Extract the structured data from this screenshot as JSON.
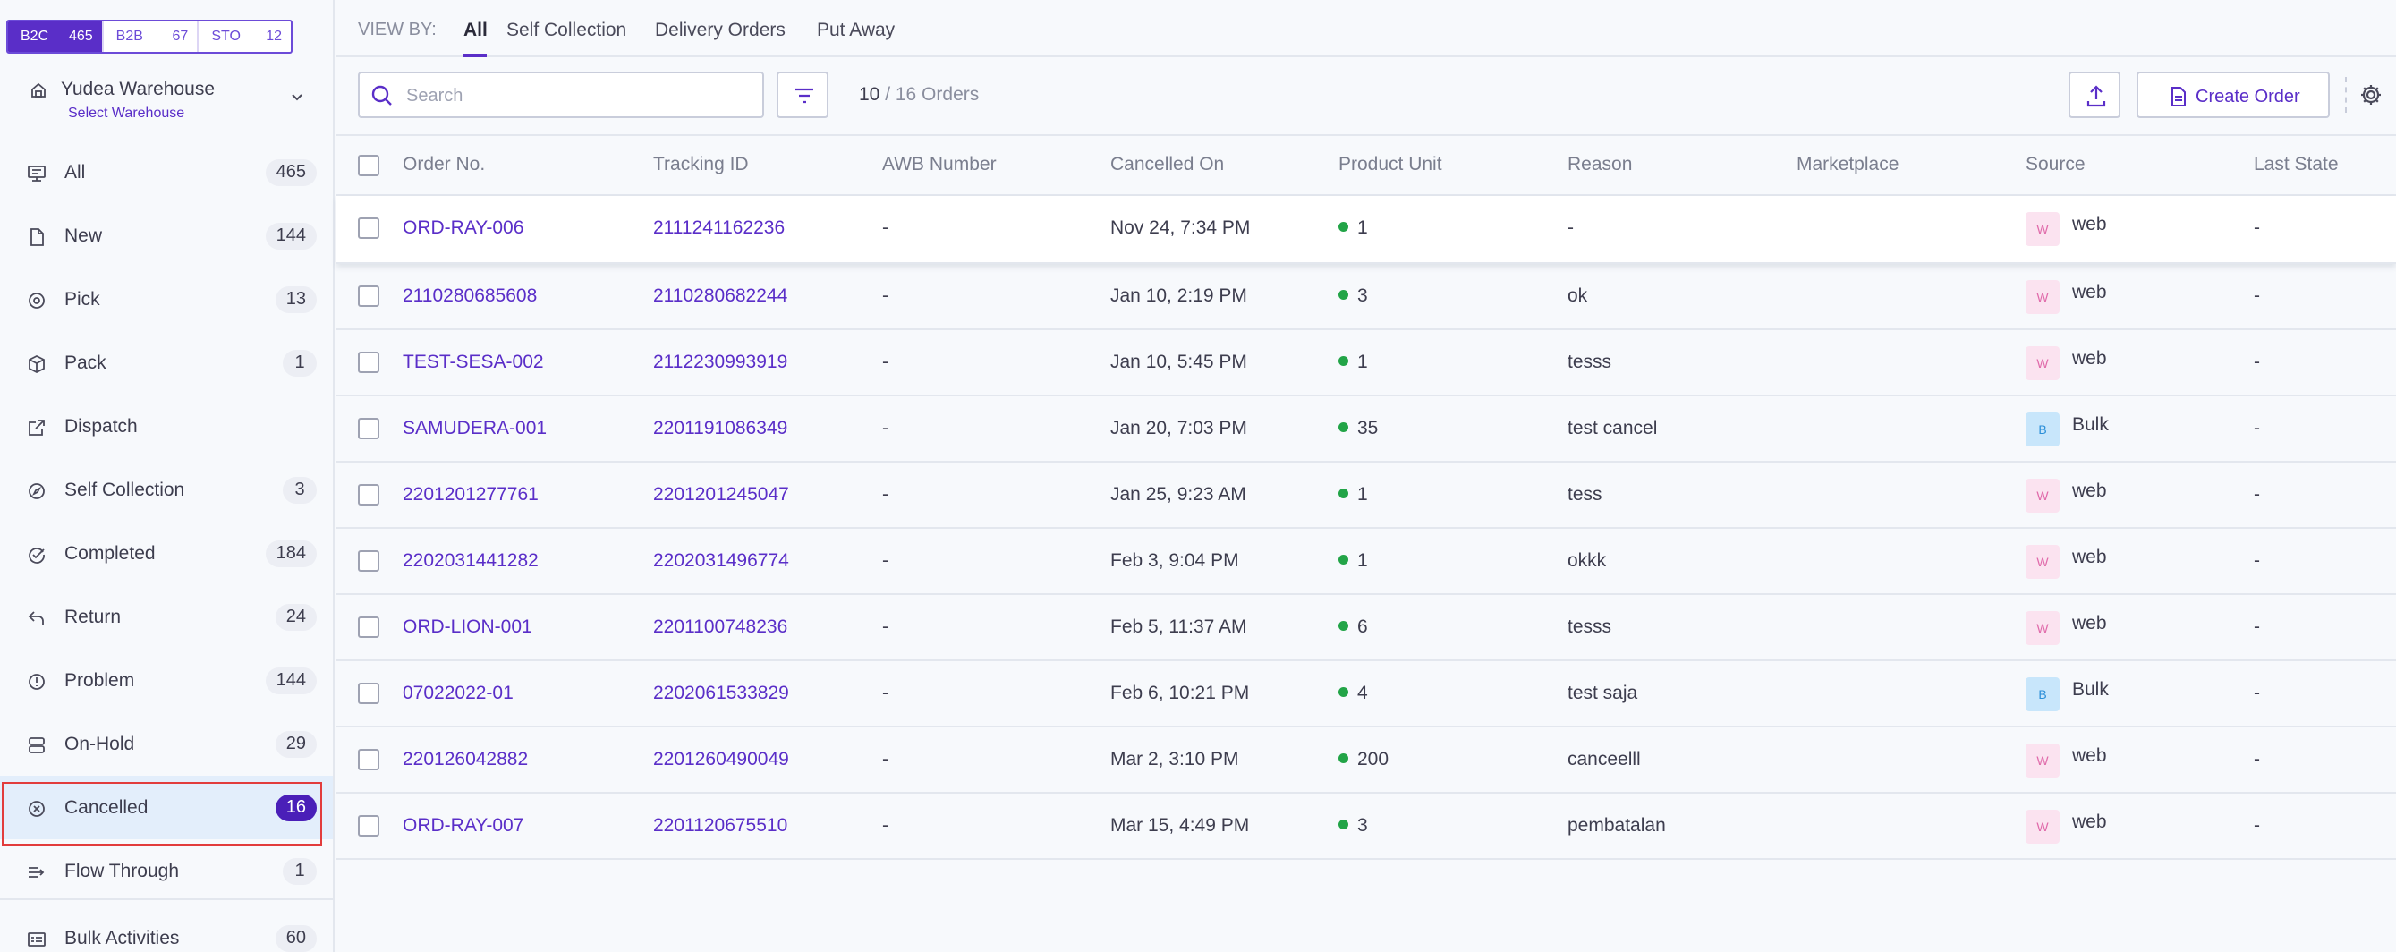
{
  "order_types": [
    {
      "label": "B2C",
      "count": "465"
    },
    {
      "label": "B2B",
      "count": "67"
    },
    {
      "label": "STO",
      "count": "12"
    }
  ],
  "warehouse": {
    "name": "Yudea Warehouse",
    "sub": "Select Warehouse"
  },
  "nav": [
    {
      "label": "All",
      "badge": "465",
      "icon": "monitor-icon"
    },
    {
      "label": "New",
      "badge": "144",
      "icon": "document-icon"
    },
    {
      "label": "Pick",
      "badge": "13",
      "icon": "target-icon"
    },
    {
      "label": "Pack",
      "badge": "1",
      "icon": "box-icon"
    },
    {
      "label": "Dispatch",
      "badge": "",
      "icon": "external-link-icon"
    },
    {
      "label": "Self Collection",
      "badge": "3",
      "icon": "compass-icon"
    },
    {
      "label": "Completed",
      "badge": "184",
      "icon": "check-circle-icon"
    },
    {
      "label": "Return",
      "badge": "24",
      "icon": "return-arrow-icon"
    },
    {
      "label": "Problem",
      "badge": "144",
      "icon": "alert-circle-icon"
    },
    {
      "label": "On-Hold",
      "badge": "29",
      "icon": "stack-icon"
    },
    {
      "label": "Cancelled",
      "badge": "16",
      "icon": "x-circle-icon",
      "active": true
    },
    {
      "label": "Flow Through",
      "badge": "1",
      "icon": "flow-icon"
    },
    {
      "label": "Bulk Activities",
      "badge": "60",
      "icon": "bulk-list-icon"
    }
  ],
  "viewby": {
    "label": "VIEW BY:",
    "tabs": [
      "All",
      "Self Collection",
      "Delivery Orders",
      "Put Away"
    ],
    "active": "All"
  },
  "toolbar": {
    "search_placeholder": "Search",
    "shown": "10",
    "total": " / 16 Orders",
    "create_label": "Create Order"
  },
  "table": {
    "headers": {
      "order": "Order No.",
      "tracking": "Tracking ID",
      "awb": "AWB Number",
      "cancelled": "Cancelled On",
      "unit": "Product Unit",
      "reason": "Reason",
      "marketplace": "Marketplace",
      "source": "Source",
      "last_state": "Last State"
    },
    "rows": [
      {
        "order": "ORD-RAY-006",
        "tracking": "2111241162236",
        "awb": "-",
        "cancelled": "Nov 24, 7:34 PM",
        "unit": "1",
        "reason": "-",
        "marketplace": "",
        "source_badge": "W",
        "source": "web",
        "last_state": "-"
      },
      {
        "order": "2110280685608",
        "tracking": "2110280682244",
        "awb": "-",
        "cancelled": "Jan 10, 2:19 PM",
        "unit": "3",
        "reason": "ok",
        "marketplace": "",
        "source_badge": "W",
        "source": "web",
        "last_state": "-"
      },
      {
        "order": "TEST-SESA-002",
        "tracking": "2112230993919",
        "awb": "-",
        "cancelled": "Jan 10, 5:45 PM",
        "unit": "1",
        "reason": "tesss",
        "marketplace": "",
        "source_badge": "W",
        "source": "web",
        "last_state": "-"
      },
      {
        "order": "SAMUDERA-001",
        "tracking": "2201191086349",
        "awb": "-",
        "cancelled": "Jan 20, 7:03 PM",
        "unit": "35",
        "reason": "test cancel",
        "marketplace": "",
        "source_badge": "B",
        "source": "Bulk",
        "last_state": "-"
      },
      {
        "order": "2201201277761",
        "tracking": "2201201245047",
        "awb": "-",
        "cancelled": "Jan 25, 9:23 AM",
        "unit": "1",
        "reason": "tess",
        "marketplace": "",
        "source_badge": "W",
        "source": "web",
        "last_state": "-"
      },
      {
        "order": "2202031441282",
        "tracking": "2202031496774",
        "awb": "-",
        "cancelled": "Feb 3, 9:04 PM",
        "unit": "1",
        "reason": "okkk",
        "marketplace": "",
        "source_badge": "W",
        "source": "web",
        "last_state": "-"
      },
      {
        "order": "ORD-LION-001",
        "tracking": "2201100748236",
        "awb": "-",
        "cancelled": "Feb 5, 11:37 AM",
        "unit": "6",
        "reason": "tesss",
        "marketplace": "",
        "source_badge": "W",
        "source": "web",
        "last_state": "-"
      },
      {
        "order": "07022022-01",
        "tracking": "2202061533829",
        "awb": "-",
        "cancelled": "Feb 6, 10:21 PM",
        "unit": "4",
        "reason": "test saja",
        "marketplace": "",
        "source_badge": "B",
        "source": "Bulk",
        "last_state": "-"
      },
      {
        "order": "220126042882",
        "tracking": "2201260490049",
        "awb": "-",
        "cancelled": "Mar 2, 3:10 PM",
        "unit": "200",
        "reason": "canceelll",
        "marketplace": "",
        "source_badge": "W",
        "source": "web",
        "last_state": "-"
      },
      {
        "order": "ORD-RAY-007",
        "tracking": "2201120675510",
        "awb": "-",
        "cancelled": "Mar 15, 4:49 PM",
        "unit": "3",
        "reason": "pembatalan",
        "marketplace": "",
        "source_badge": "W",
        "source": "web",
        "last_state": "-"
      }
    ]
  },
  "colors": {
    "accent": "#5a2ec8",
    "active_badge": "#4a1fb8",
    "highlight_outline": "#e23c3c",
    "unit_dot": "#22a447"
  }
}
